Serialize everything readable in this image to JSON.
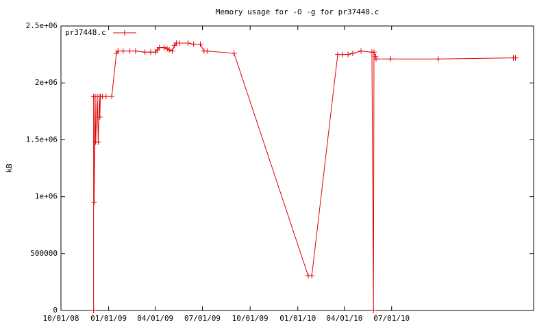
{
  "chart_data": {
    "type": "line",
    "title": "Memory usage for -O -g for pr37448.c",
    "ylabel": "kB",
    "x": [
      "12/03/08",
      "12/03/08",
      "12/04/08",
      "12/06/08",
      "12/07/08",
      "12/10/08",
      "12/12/08",
      "12/14/08",
      "12/15/08",
      "12/16/08",
      "12/20/08",
      "12/27/08",
      "01/07/09",
      "01/16/09",
      "01/19/09",
      "01/29/09",
      "02/11/09",
      "02/22/09",
      "03/12/09",
      "03/23/09",
      "04/01/09",
      "04/05/09",
      "04/09/09",
      "04/18/09",
      "04/24/09",
      "04/28/09",
      "05/04/09",
      "05/08/09",
      "05/12/09",
      "05/17/09",
      "06/03/09",
      "06/14/09",
      "06/27/09",
      "07/04/09",
      "07/10/09",
      "08/31/09",
      "01/21/10",
      "01/28/10",
      "03/19/10",
      "03/28/10",
      "04/08/10",
      "04/17/10",
      "05/03/10",
      "05/24/10",
      "05/27/10",
      "05/28/10",
      "05/31/10",
      "06/01/10",
      "06/29/10",
      "09/29/10",
      "02/21/11",
      "02/25/11"
    ],
    "series": [
      {
        "name": "pr37448.c",
        "color": "#e00000",
        "values": [
          0,
          1880000,
          950000,
          1880000,
          1480000,
          1880000,
          1480000,
          1880000,
          1700000,
          1880000,
          1880000,
          1880000,
          1880000,
          2260000,
          2280000,
          2280000,
          2280000,
          2280000,
          2270000,
          2270000,
          2270000,
          2290000,
          2310000,
          2310000,
          2300000,
          2290000,
          2280000,
          2330000,
          2350000,
          2350000,
          2350000,
          2340000,
          2340000,
          2280000,
          2280000,
          2260000,
          305000,
          305000,
          2250000,
          2250000,
          2250000,
          2260000,
          2280000,
          2270000,
          0,
          2270000,
          2230000,
          2210000,
          2210000,
          2210000,
          2220000,
          2220000
        ]
      }
    ],
    "xlim": [
      "10/01/08",
      "04/01/11"
    ],
    "xticks": [
      "10/01/08",
      "01/01/09",
      "04/01/09",
      "07/01/09",
      "10/01/09",
      "01/01/10",
      "04/01/10",
      "07/01/10"
    ],
    "ylim": [
      0,
      2500000
    ],
    "yticks": [
      0,
      500000,
      {
        "value": 1000000,
        "label": "1e+06"
      },
      {
        "value": 1500000,
        "label": "1.5e+06"
      },
      {
        "value": 2000000,
        "label": "2e+06"
      },
      {
        "value": 2500000,
        "label": "2.5e+06"
      }
    ],
    "legend": "top-left"
  }
}
